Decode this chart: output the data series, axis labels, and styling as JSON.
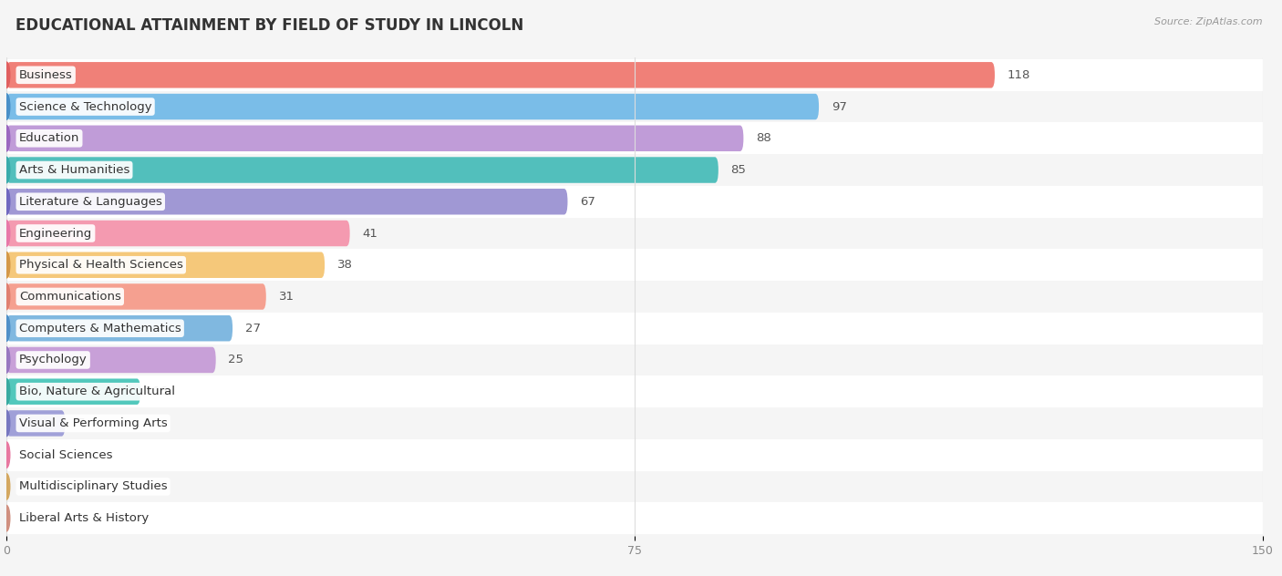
{
  "title": "EDUCATIONAL ATTAINMENT BY FIELD OF STUDY IN LINCOLN",
  "source": "Source: ZipAtlas.com",
  "categories": [
    "Business",
    "Science & Technology",
    "Education",
    "Arts & Humanities",
    "Literature & Languages",
    "Engineering",
    "Physical & Health Sciences",
    "Communications",
    "Computers & Mathematics",
    "Psychology",
    "Bio, Nature & Agricultural",
    "Visual & Performing Arts",
    "Social Sciences",
    "Multidisciplinary Studies",
    "Liberal Arts & History"
  ],
  "values": [
    118,
    97,
    88,
    85,
    67,
    41,
    38,
    31,
    27,
    25,
    16,
    7,
    0,
    0,
    0
  ],
  "bar_colors": [
    "#F08078",
    "#7ABDE8",
    "#C09CD8",
    "#52BFBC",
    "#A098D4",
    "#F49AB0",
    "#F5C87A",
    "#F5A090",
    "#80B8E0",
    "#C8A0D8",
    "#52C8BC",
    "#A0A0D8",
    "#F4A0B8",
    "#F5C890",
    "#F4A898"
  ],
  "dot_colors": [
    "#E06060",
    "#4A90C8",
    "#9B68C0",
    "#3AABAB",
    "#7068C0",
    "#E878A8",
    "#D49848",
    "#E08070",
    "#5090C8",
    "#9878C0",
    "#3AAAA0",
    "#7878C0",
    "#E878A0",
    "#D4A860",
    "#D09080"
  ],
  "row_colors": [
    "#ffffff",
    "#f5f5f5",
    "#ffffff",
    "#f5f5f5",
    "#ffffff",
    "#f5f5f5",
    "#ffffff",
    "#f5f5f5",
    "#ffffff",
    "#f5f5f5",
    "#ffffff",
    "#f5f5f5",
    "#ffffff",
    "#f5f5f5",
    "#ffffff"
  ],
  "xlim": [
    0,
    150
  ],
  "xticks": [
    0,
    75,
    150
  ],
  "background_color": "#f5f5f5",
  "title_fontsize": 12,
  "label_fontsize": 9.5,
  "value_fontsize": 9.5
}
